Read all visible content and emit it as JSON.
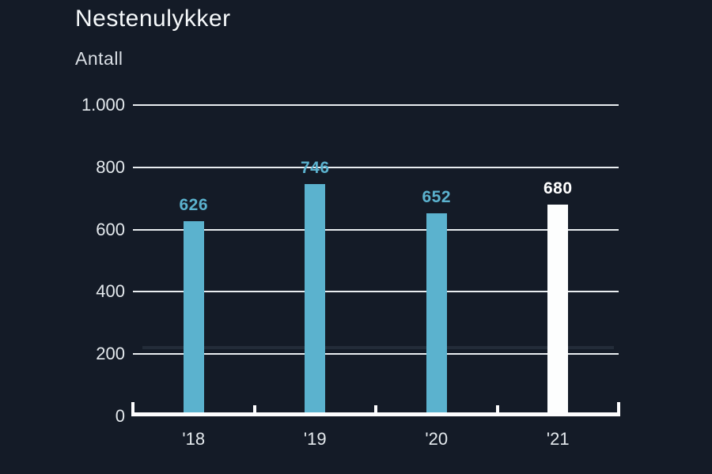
{
  "title": "Nestenulykker",
  "subtitle": "Antall",
  "chart_data": {
    "type": "bar",
    "title": "Nestenulykker",
    "subtitle": "Antall",
    "categories": [
      "'18",
      "'19",
      "'20",
      "'21"
    ],
    "values": [
      626,
      746,
      652,
      680
    ],
    "bar_colors": [
      "#5BB2CE",
      "#5BB2CE",
      "#5BB2CE",
      "#FDFEFE"
    ],
    "value_label_colors": [
      "#5BB2CE",
      "#5BB2CE",
      "#5BB2CE",
      "#FFFFFF"
    ],
    "data_labels_shown": true,
    "xlabel": "",
    "ylabel": "Antall",
    "ylim": [
      0,
      1000
    ],
    "yticks": [
      0,
      200,
      400,
      600,
      800,
      1000
    ],
    "ytick_labels": [
      "0",
      "200",
      "400",
      "600",
      "800",
      "1.000"
    ],
    "grid": true,
    "legend": false,
    "reference_line": {
      "value": 222,
      "color": "#232C39"
    }
  },
  "colors": {
    "background": "#141B27",
    "title_text": "#F6F9FB",
    "subtitle_text": "#D9DEE4",
    "axis_text": "#E4E9ED",
    "gridline": "#E9EDF0",
    "axis_line": "#FDFDFE",
    "bar_blue": "#5BB2CE",
    "bar_white": "#FDFEFE"
  }
}
